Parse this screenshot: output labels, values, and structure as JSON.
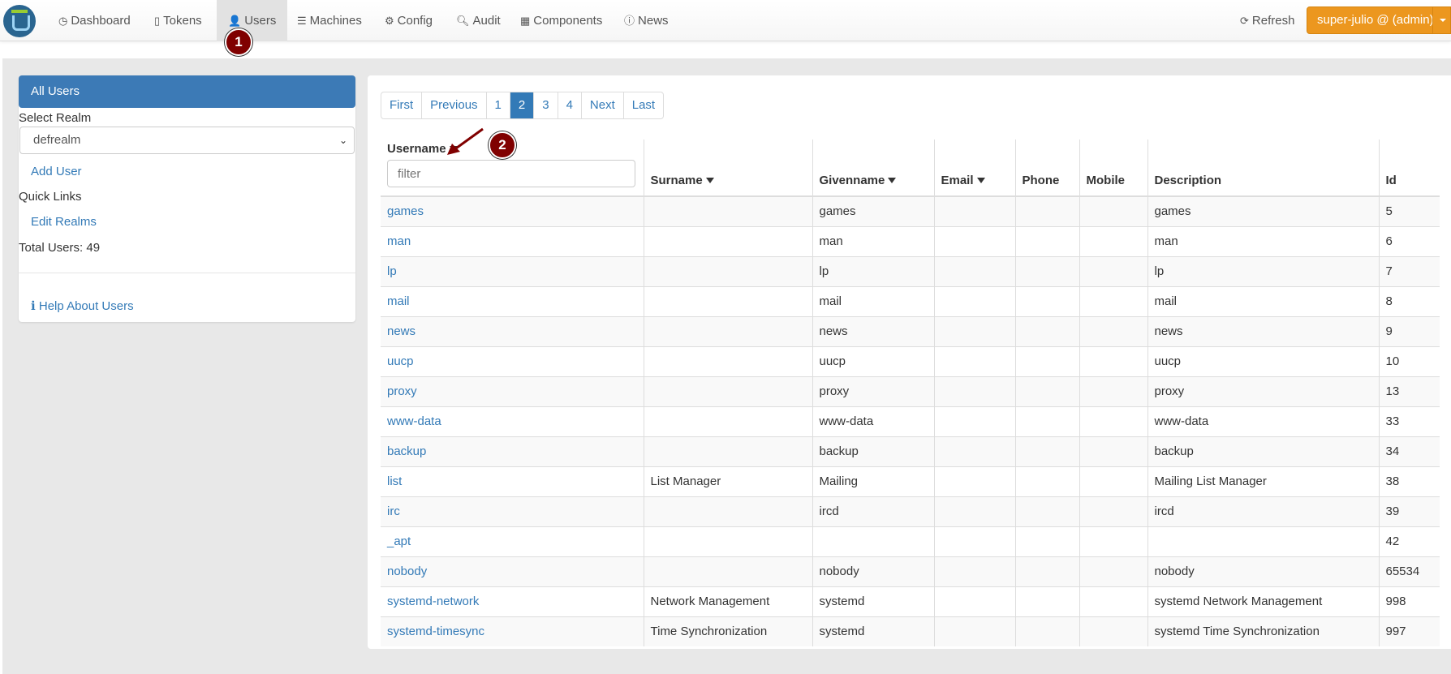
{
  "nav": {
    "items": [
      {
        "label": "Dashboard",
        "icon": "dashboard-icon"
      },
      {
        "label": "Tokens",
        "icon": "mobile-icon"
      },
      {
        "label": "Users",
        "icon": "user-icon",
        "active": true
      },
      {
        "label": "Machines",
        "icon": "server-icon"
      },
      {
        "label": "Config",
        "icon": "gear-icon"
      },
      {
        "label": "Audit",
        "icon": "search-icon"
      },
      {
        "label": "Components",
        "icon": "calendar-icon"
      },
      {
        "label": "News",
        "icon": "info-icon"
      }
    ],
    "refresh": "Refresh",
    "user": "super-julio @ (admin)"
  },
  "sidebar": {
    "all_users": "All Users",
    "select_realm": "Select Realm",
    "realm": "defrealm",
    "add_user": "Add User",
    "quick_links": "Quick Links",
    "edit_realms": "Edit Realms",
    "total_users": "Total Users: 49",
    "help": "Help About Users"
  },
  "pagination": [
    "First",
    "Previous",
    "1",
    "2",
    "3",
    "4",
    "Next",
    "Last"
  ],
  "current_page": "2",
  "table": {
    "filter_placeholder": "filter",
    "columns": [
      "Username",
      "Surname",
      "Givenname",
      "Email",
      "Phone",
      "Mobile",
      "Description",
      "Id"
    ],
    "rows": [
      [
        "games",
        "",
        "games",
        "",
        "",
        "",
        "games",
        "5"
      ],
      [
        "man",
        "",
        "man",
        "",
        "",
        "",
        "man",
        "6"
      ],
      [
        "lp",
        "",
        "lp",
        "",
        "",
        "",
        "lp",
        "7"
      ],
      [
        "mail",
        "",
        "mail",
        "",
        "",
        "",
        "mail",
        "8"
      ],
      [
        "news",
        "",
        "news",
        "",
        "",
        "",
        "news",
        "9"
      ],
      [
        "uucp",
        "",
        "uucp",
        "",
        "",
        "",
        "uucp",
        "10"
      ],
      [
        "proxy",
        "",
        "proxy",
        "",
        "",
        "",
        "proxy",
        "13"
      ],
      [
        "www-data",
        "",
        "www-data",
        "",
        "",
        "",
        "www-data",
        "33"
      ],
      [
        "backup",
        "",
        "backup",
        "",
        "",
        "",
        "backup",
        "34"
      ],
      [
        "list",
        "List Manager",
        "Mailing",
        "",
        "",
        "",
        "Mailing List Manager",
        "38"
      ],
      [
        "irc",
        "",
        "ircd",
        "",
        "",
        "",
        "ircd",
        "39"
      ],
      [
        "_apt",
        "",
        "",
        "",
        "",
        "",
        "",
        "42"
      ],
      [
        "nobody",
        "",
        "nobody",
        "",
        "",
        "",
        "nobody",
        "65534"
      ],
      [
        "systemd-network",
        "Network Management",
        "systemd",
        "",
        "",
        "",
        "systemd Network Management",
        "998"
      ],
      [
        "systemd-timesync",
        "Time Synchronization",
        "systemd",
        "",
        "",
        "",
        "systemd Time Synchronization",
        "997"
      ]
    ]
  },
  "annotations": [
    "1",
    "2"
  ],
  "colors": {
    "accent": "#337ab7",
    "user_button": "#ec971f",
    "badge": "#800000"
  }
}
